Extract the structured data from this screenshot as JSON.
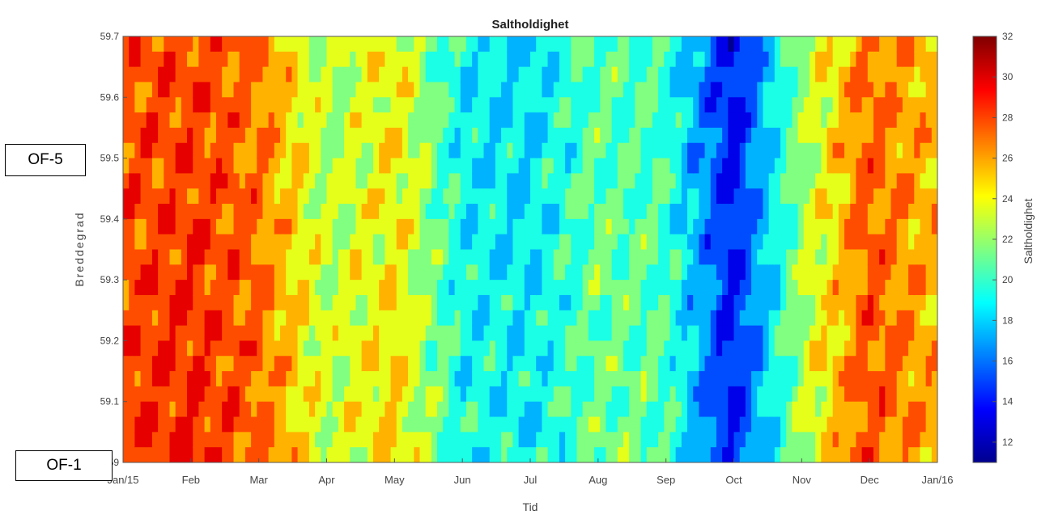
{
  "chart_data": {
    "type": "heatmap",
    "title": "Saltholdighet",
    "xlabel": "Tid",
    "ylabel": "Breddegrad",
    "colorbar_label": "Saltholdighet",
    "x_ticks": [
      "Jan/15",
      "Feb",
      "Mar",
      "Apr",
      "May",
      "Jun",
      "Jul",
      "Aug",
      "Sep",
      "Oct",
      "Nov",
      "Dec",
      "Jan/16"
    ],
    "y_ticks": [
      "59",
      "59.1",
      "59.2",
      "59.3",
      "59.4",
      "59.5",
      "59.6",
      "59.7"
    ],
    "ylim": [
      59.0,
      59.7
    ],
    "colorbar_ticks": [
      "12",
      "14",
      "16",
      "18",
      "20",
      "22",
      "24",
      "26",
      "28",
      "30",
      "32"
    ],
    "clim": [
      11,
      32
    ],
    "colormap": [
      "#00008f",
      "#0000ff",
      "#0080ff",
      "#00ffff",
      "#80ff80",
      "#ffff00",
      "#ff8000",
      "#ff0000",
      "#800000"
    ],
    "salinity_by_month": [
      {
        "month": "Jan/15",
        "value": 28
      },
      {
        "month": "Feb",
        "value": 28.5
      },
      {
        "month": "Mar",
        "value": 27
      },
      {
        "month": "Apr",
        "value": 22.5
      },
      {
        "month": "May",
        "value": 24.5
      },
      {
        "month": "Jun",
        "value": 19
      },
      {
        "month": "Jul",
        "value": 18.5
      },
      {
        "month": "Aug",
        "value": 21
      },
      {
        "month": "Sep",
        "value": 20.5
      },
      {
        "month": "Oct",
        "value": 13.5
      },
      {
        "month": "Nov",
        "value": 22
      },
      {
        "month": "Dec",
        "value": 27.5
      },
      {
        "month": "Jan/16",
        "value": 25.5
      }
    ],
    "grid": false
  },
  "annotations": {
    "top_station": "OF-5",
    "bottom_station": "OF-1"
  }
}
